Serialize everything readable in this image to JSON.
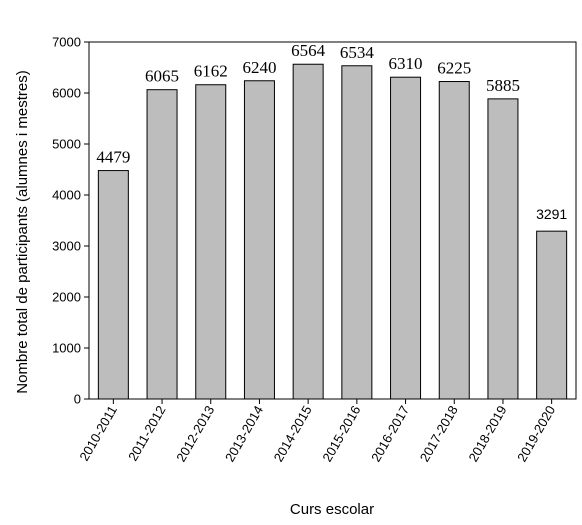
{
  "chart_data": {
    "type": "bar",
    "categories": [
      "2010-2011",
      "2011-2012",
      "2012-2013",
      "2013-2014",
      "2014-2015",
      "2015-2016",
      "2016-2017",
      "2017-2018",
      "2018-2019",
      "2019-2020"
    ],
    "values": [
      4479,
      6065,
      6162,
      6240,
      6564,
      6534,
      6310,
      6225,
      5885,
      3291
    ],
    "data_labels": [
      "4479",
      "6065",
      "6162",
      "6240",
      "6564",
      "6534",
      "6310",
      "6225",
      "5885",
      "3291"
    ],
    "title": "",
    "xlabel": "Curs escolar",
    "ylabel": "Nombre total de participants (alumnes i mestres)",
    "ylim": [
      0,
      7000
    ],
    "yticks": [
      0,
      1000,
      2000,
      3000,
      4000,
      5000,
      6000,
      7000
    ],
    "bar_color": "#bdbdbd",
    "bar_edge_color": "#000000",
    "grid": false,
    "legend": "none"
  }
}
